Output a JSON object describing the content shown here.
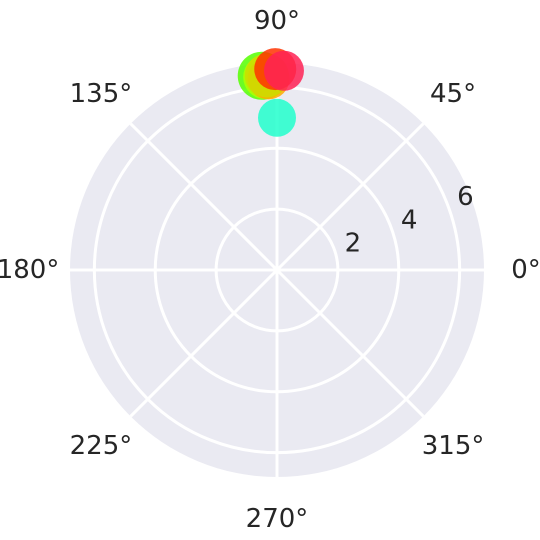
{
  "chart_data": {
    "type": "scatter",
    "projection": "polar",
    "title": "",
    "angular_ticks": [
      "0°",
      "45°",
      "90°",
      "135°",
      "180°",
      "225°",
      "270°",
      "315°"
    ],
    "angular_tick_degrees": [
      0,
      45,
      90,
      135,
      180,
      225,
      270,
      315
    ],
    "radial_ticks": [
      2,
      4,
      6
    ],
    "rlim": [
      0,
      6.8
    ],
    "rlabel_position_deg": 22.5,
    "grid": true,
    "background": "#eaeaf2",
    "grid_color": "#ffffff",
    "points": [
      {
        "theta_deg": 90.0,
        "r": 5.0,
        "color": "#22ffcc",
        "marker_size": 38
      },
      {
        "theta_deg": 94.5,
        "r": 6.4,
        "color": "#55ff00",
        "marker_size": 48
      },
      {
        "theta_deg": 93.5,
        "r": 6.35,
        "color": "#b0ff00",
        "marker_size": 44
      },
      {
        "theta_deg": 92.5,
        "r": 6.3,
        "color": "#ffaa00",
        "marker_size": 42
      },
      {
        "theta_deg": 93.0,
        "r": 6.4,
        "color": "#ccdd00",
        "marker_size": 44
      },
      {
        "theta_deg": 90.5,
        "r": 6.6,
        "color": "#ff3300",
        "marker_size": 42
      },
      {
        "theta_deg": 88.0,
        "r": 6.55,
        "color": "#ff2255",
        "marker_size": 40
      }
    ]
  }
}
